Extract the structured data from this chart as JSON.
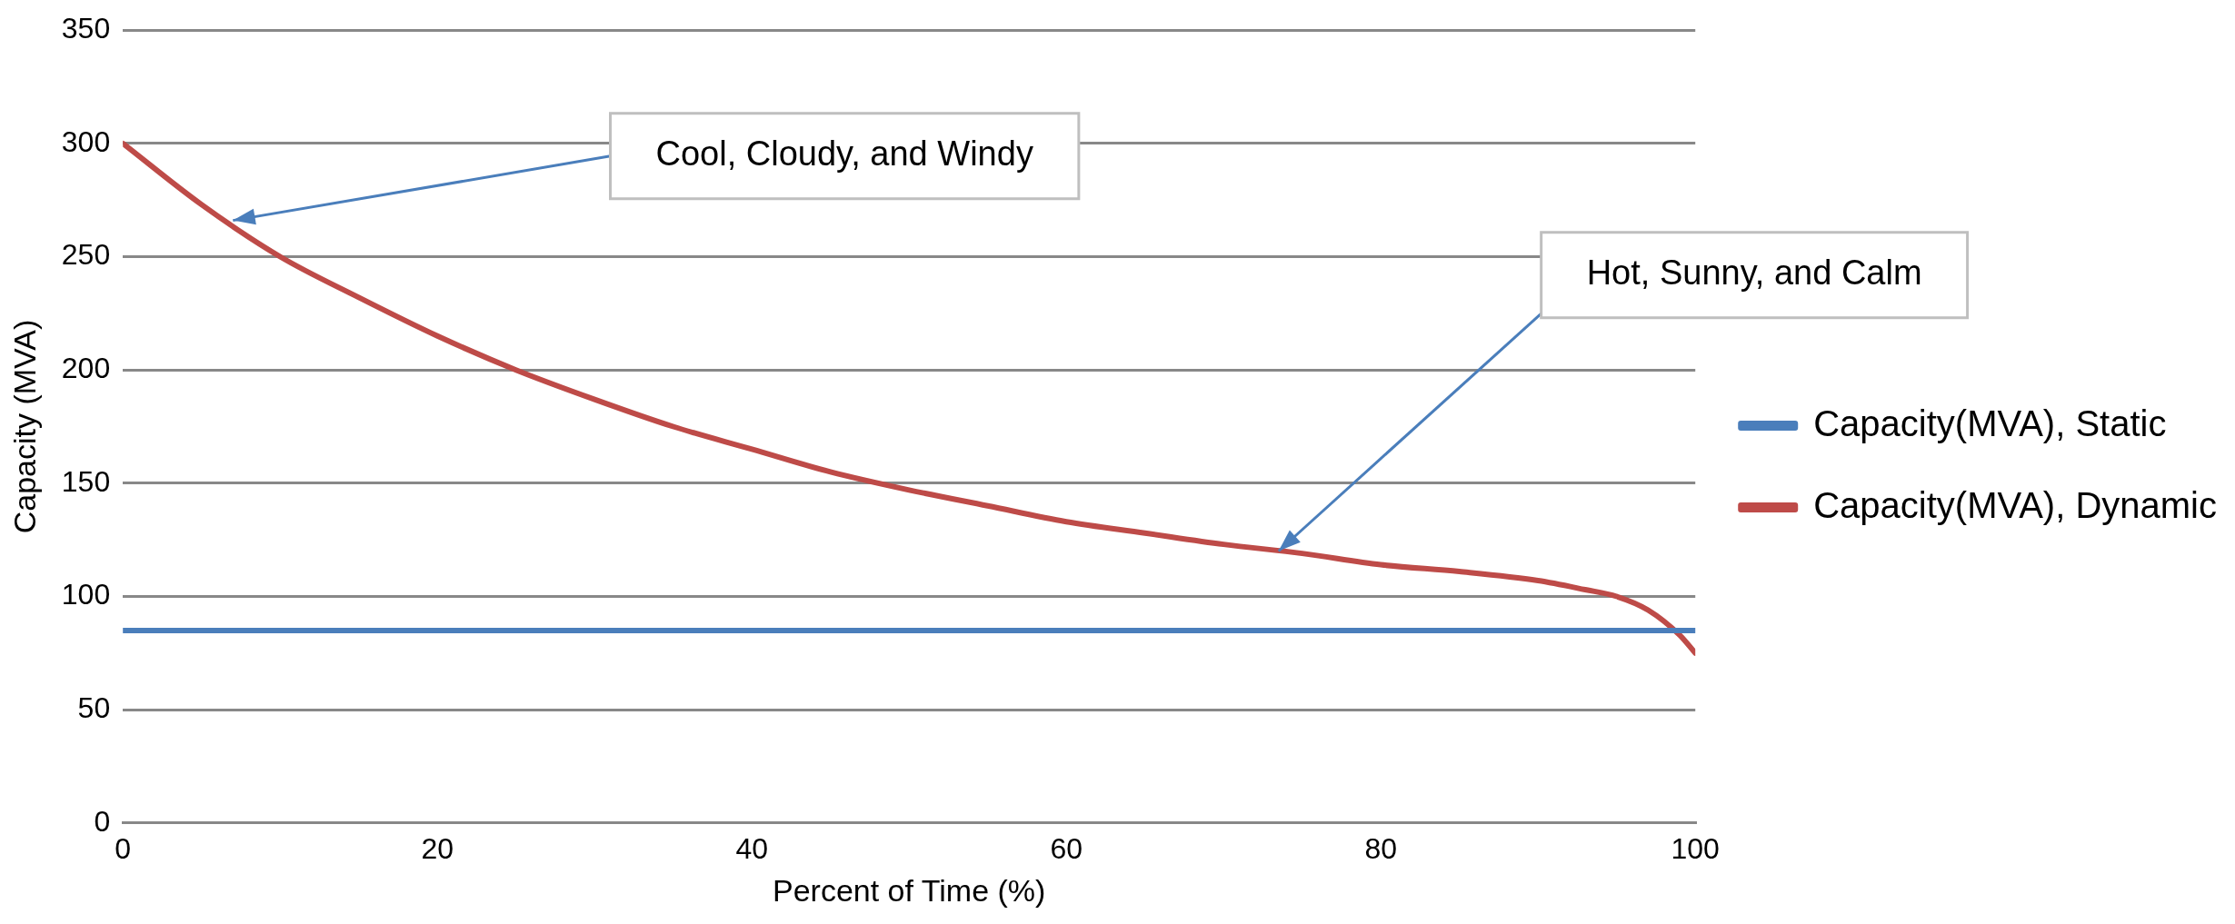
{
  "chart_data": {
    "type": "line",
    "xlabel": "Percent of Time (%)",
    "ylabel": "Capacity (MVA)",
    "x": [
      0,
      5,
      10,
      15,
      20,
      25,
      30,
      35,
      40,
      45,
      50,
      55,
      60,
      65,
      70,
      75,
      80,
      85,
      90,
      93,
      95,
      97,
      99,
      100
    ],
    "series": [
      {
        "name": "Capacity(MVA), Static",
        "color": "#4a7ebb",
        "values": [
          85,
          85,
          85,
          85,
          85,
          85,
          85,
          85,
          85,
          85,
          85,
          85,
          85,
          85,
          85,
          85,
          85,
          85,
          85,
          85,
          85,
          85,
          85,
          85
        ]
      },
      {
        "name": "Capacity(MVA), Dynamic",
        "color": "#be4b48",
        "values": [
          300,
          273,
          250,
          232,
          215,
          200,
          187,
          175,
          165,
          155,
          147,
          140,
          133,
          128,
          123,
          119,
          114,
          111,
          107,
          103,
          100,
          94,
          83,
          75
        ]
      }
    ],
    "xlim": [
      0,
      100
    ],
    "xticks": [
      0,
      20,
      40,
      60,
      80,
      100
    ],
    "ylim": [
      0,
      350
    ],
    "yticks": [
      0,
      50,
      100,
      150,
      200,
      250,
      300,
      350
    ],
    "grid": "y",
    "legend": "right",
    "marker": "none",
    "line_style": "solid",
    "annotations": [
      "Cool, Cloudy, and Windy",
      "Hot, Sunny, and Calm"
    ]
  }
}
